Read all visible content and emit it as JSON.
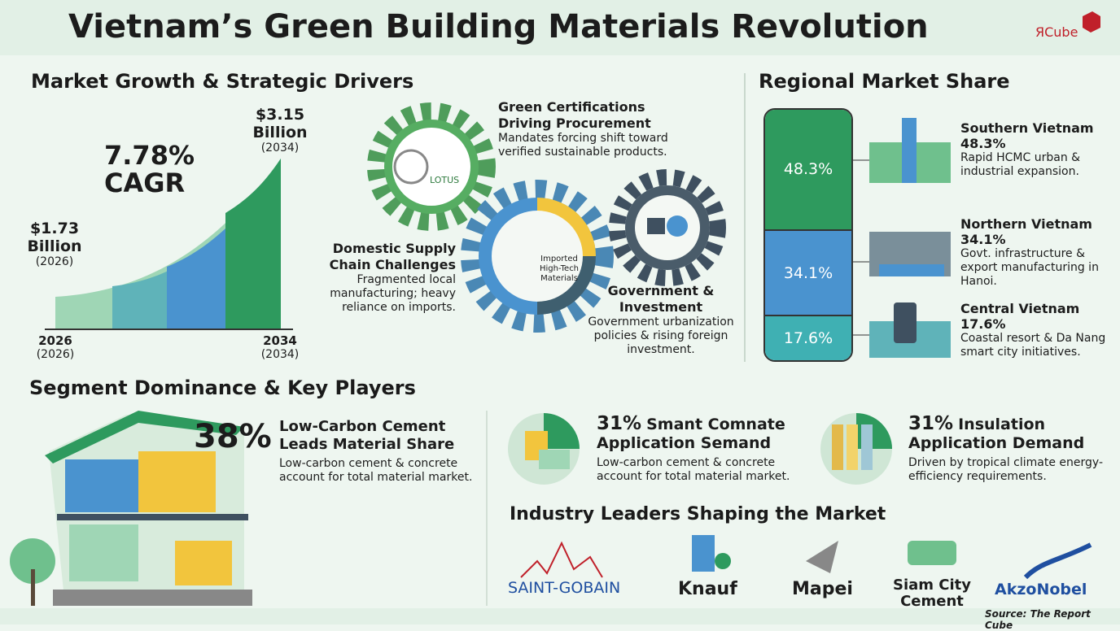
{
  "header": {
    "title": "Vietnam’s Green Building Materials Revolution",
    "logo": "ЯCube"
  },
  "market": {
    "title": "Market Growth & Strategic Drivers",
    "cagr": "7.78%",
    "cagr_label": "CAGR",
    "start": {
      "value": "$1.73",
      "unit": "Billion",
      "year": "(2026)"
    },
    "end": {
      "value": "$3.15",
      "unit": "Billion",
      "year": "(2034)"
    },
    "axis": [
      {
        "year": "2026",
        "sub": "(2026)"
      },
      {
        "year": "2034",
        "sub": "(2034)"
      }
    ]
  },
  "drivers": {
    "items": [
      {
        "title": "Green Certifications Driving Procurement",
        "text": "Mandates forcing shift toward verified sustainable products."
      },
      {
        "title": "Domestic Supply Chain Challenges",
        "text": "Fragmented local manufacturing; heavy reliance on imports."
      },
      {
        "title": "Government & Investment",
        "text": "Government urbanization policies & rising foreign investment."
      }
    ],
    "lotus": "LOTUS",
    "center": "Imported High-Tech Materials"
  },
  "regional": {
    "title": "Regional Market Share",
    "segments": [
      {
        "name": "Southern Vietnam",
        "value": 48.3,
        "label": "48.3%",
        "color": "#2e9a5e",
        "text": "Rapid HCMC urban & industrial expansion."
      },
      {
        "name": "Northern Vietnam",
        "value": 34.1,
        "label": "34.1%",
        "color": "#4a93cf",
        "text": "Govt. infrastructure & export manufacturing in Hanoi."
      },
      {
        "name": "Central Vietnam",
        "value": 17.6,
        "label": "17.6%",
        "color": "#3fb0b3",
        "text": "Coastal resort & Da Nang smart city initiatives."
      }
    ]
  },
  "segments": {
    "title": "Segment Dominance & Key Players",
    "cards": [
      {
        "stat": "38%",
        "title": "Low-Carbon Cement Leads Material Share",
        "text": "Low-carbon cement & concrete account for total material market."
      },
      {
        "stat": "31%",
        "title": "Smant Comnate Application Semand",
        "text": "Low-carbon cement & concrete account for total material market."
      },
      {
        "stat": "31%",
        "title": "Insulation Application Demand",
        "text": "Driven by tropical climate energy-efficiency requirements."
      }
    ]
  },
  "leaders": {
    "title": "Industry Leaders Shaping the Market",
    "companies": [
      "SAINT-GOBAIN",
      "Knauf",
      "Mapei",
      "Siam City Cement",
      "AkzoNobel"
    ]
  },
  "source": "Source: The Report Cube"
}
